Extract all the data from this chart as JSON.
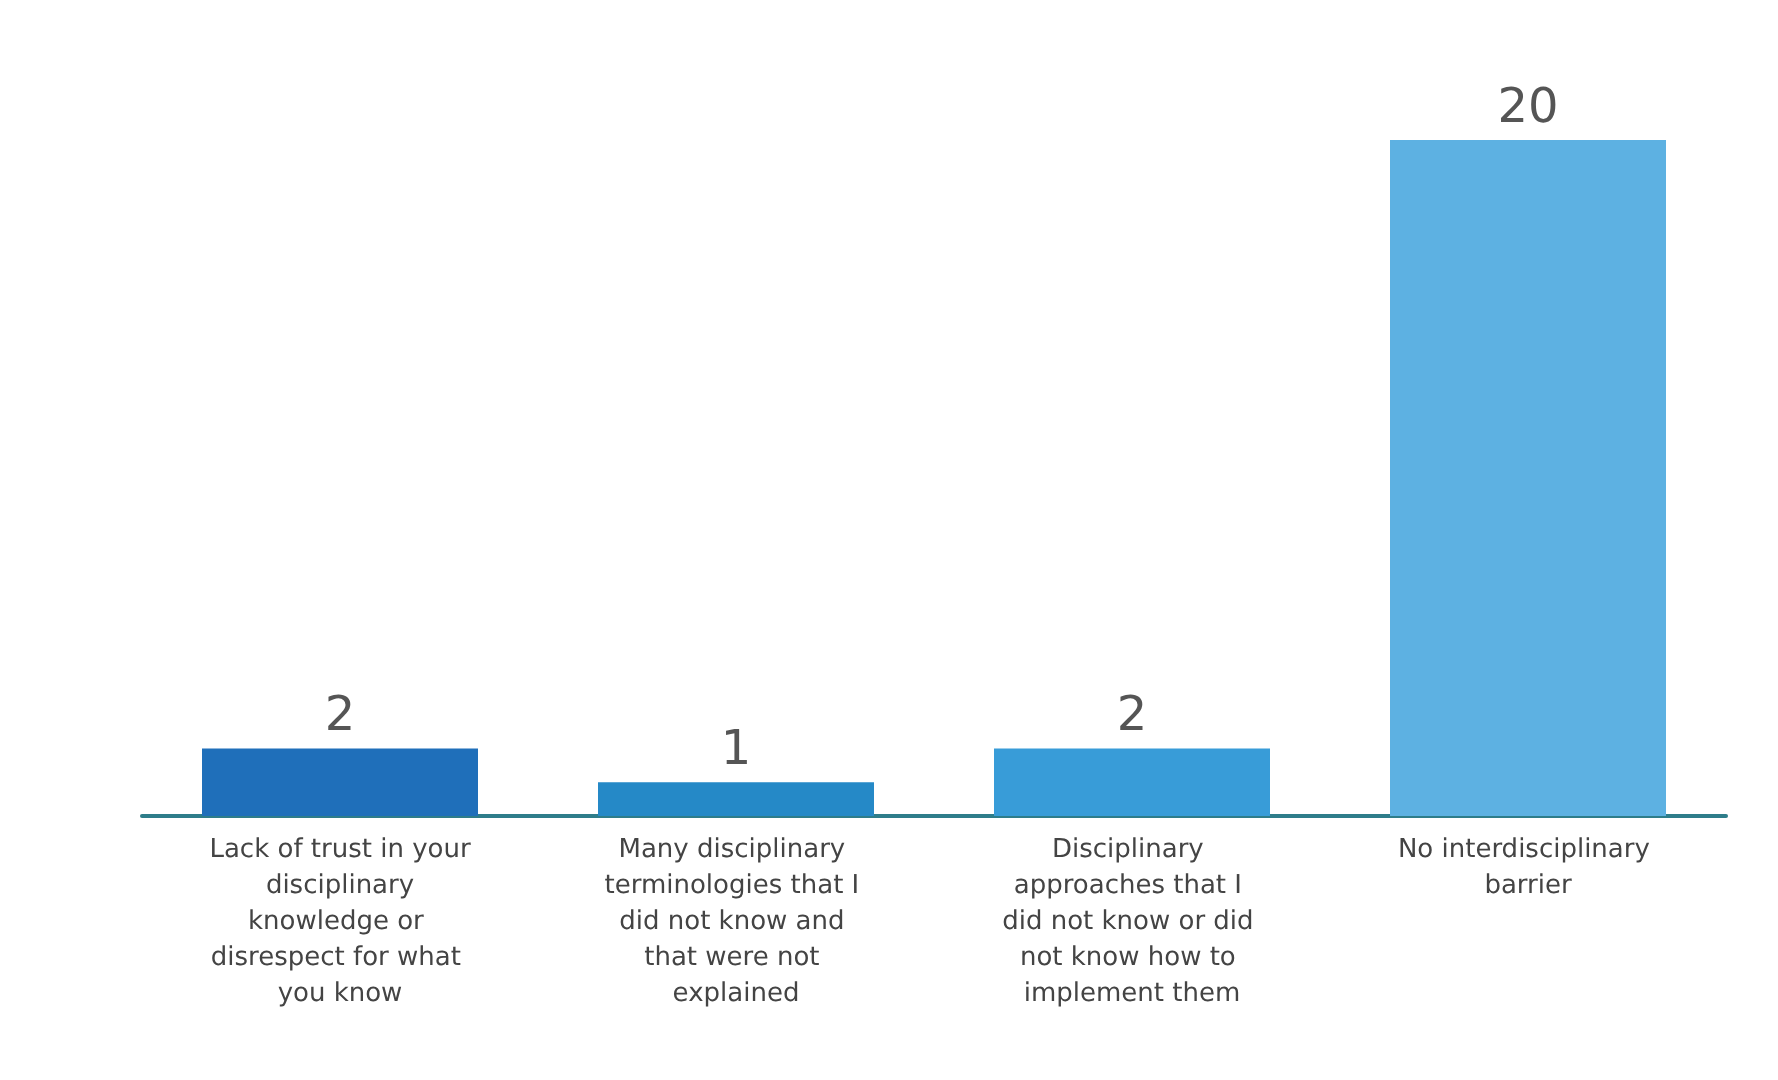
{
  "chart_data": {
    "type": "bar",
    "categories": [
      "Lack of trust in your disciplinary knowledge or disrespect for what you know",
      "Many disciplinary terminologies that I did not know and that were not explained",
      "Disciplinary approaches that I did not know or did not know how to implement them",
      "No interdisciplinary barrier"
    ],
    "values": [
      2,
      1,
      2,
      20
    ],
    "colors": [
      "#1f6fba",
      "#2589c7",
      "#389cd8",
      "#5db1e2"
    ],
    "data_labels": true
  }
}
